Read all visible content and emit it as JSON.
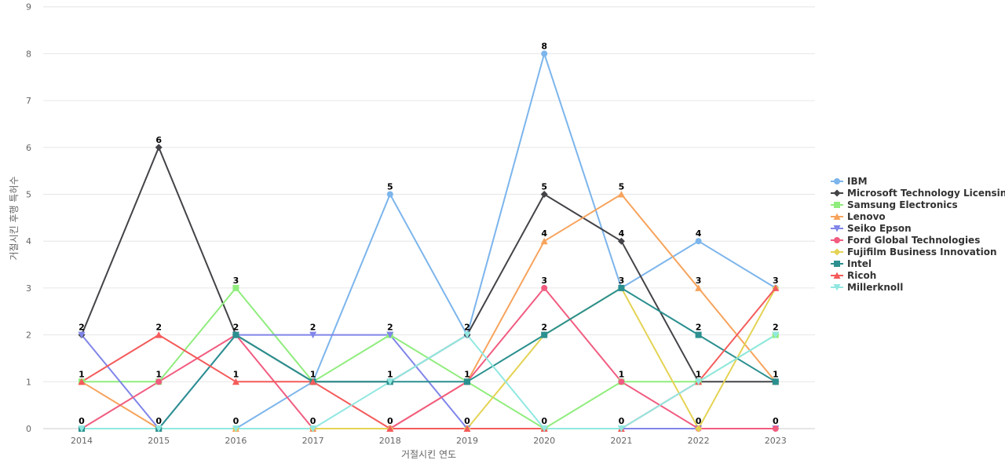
{
  "chart_data": {
    "type": "line",
    "xlabel": "거절시킨 연도",
    "ylabel": "거절시킨 후행 특허수",
    "ylim": [
      0,
      9
    ],
    "yticks": [
      0,
      1,
      2,
      3,
      4,
      5,
      6,
      7,
      8,
      9
    ],
    "grid": true,
    "legend_position": "right",
    "categories": [
      "2014",
      "2015",
      "2016",
      "2017",
      "2018",
      "2019",
      "2020",
      "2021",
      "2022",
      "2023"
    ],
    "series": [
      {
        "name": "IBM",
        "color": "#7cb5ec",
        "marker": "circle",
        "values": [
          0,
          0,
          0,
          1,
          5,
          2,
          8,
          3,
          4,
          3
        ]
      },
      {
        "name": "Microsoft Technology Licensing",
        "color": "#434348",
        "marker": "diamond",
        "values": [
          2,
          6,
          2,
          1,
          1,
          2,
          5,
          4,
          1,
          1
        ]
      },
      {
        "name": "Samsung Electronics",
        "color": "#90ed7d",
        "marker": "square",
        "values": [
          1,
          1,
          3,
          1,
          2,
          1,
          0,
          1,
          1,
          2
        ]
      },
      {
        "name": "Lenovo",
        "color": "#f7a35c",
        "marker": "triangle",
        "values": [
          1,
          0,
          0,
          0,
          0,
          1,
          4,
          5,
          3,
          1
        ]
      },
      {
        "name": "Seiko Epson",
        "color": "#8085e9",
        "marker": "triangle-down",
        "values": [
          2,
          0,
          2,
          2,
          2,
          0,
          0,
          0,
          0,
          0
        ]
      },
      {
        "name": "Ford Global Technologies",
        "color": "#f15c80",
        "marker": "circle",
        "values": [
          0,
          1,
          2,
          0,
          0,
          1,
          3,
          1,
          0,
          0
        ]
      },
      {
        "name": "Fujifilm Business Innovation",
        "color": "#e4d354",
        "marker": "diamond",
        "values": [
          0,
          0,
          0,
          0,
          0,
          0,
          2,
          3,
          0,
          3
        ]
      },
      {
        "name": "Intel",
        "color": "#2b908f",
        "marker": "square",
        "values": [
          0,
          0,
          2,
          1,
          1,
          1,
          2,
          3,
          2,
          1
        ]
      },
      {
        "name": "Ricoh",
        "color": "#f45b5b",
        "marker": "triangle",
        "values": [
          1,
          2,
          1,
          1,
          0,
          0,
          0,
          0,
          1,
          3
        ]
      },
      {
        "name": "Millerknoll",
        "color": "#91e8e1",
        "marker": "triangle-down",
        "values": [
          0,
          0,
          0,
          0,
          1,
          2,
          0,
          0,
          1,
          2
        ]
      }
    ],
    "data_labels": [
      {
        "x": "2014",
        "labels": [
          "2",
          "1",
          "0"
        ]
      },
      {
        "x": "2015",
        "labels": [
          "6",
          "2",
          "1",
          "0"
        ]
      },
      {
        "x": "2016",
        "labels": [
          "3",
          "2",
          "1",
          "0"
        ]
      },
      {
        "x": "2017",
        "labels": [
          "2",
          "1",
          "0"
        ]
      },
      {
        "x": "2018",
        "labels": [
          "5",
          "2",
          "1",
          "0"
        ]
      },
      {
        "x": "2019",
        "labels": [
          "2",
          "1",
          "0"
        ]
      },
      {
        "x": "2020",
        "labels": [
          "8",
          "5",
          "4",
          "3",
          "2",
          "0"
        ]
      },
      {
        "x": "2021",
        "labels": [
          "5",
          "4",
          "3",
          "1",
          "0"
        ]
      },
      {
        "x": "2022",
        "labels": [
          "4",
          "3",
          "2",
          "1",
          "0"
        ]
      },
      {
        "x": "2023",
        "labels": [
          "3",
          "2",
          "1",
          "0"
        ]
      }
    ]
  }
}
